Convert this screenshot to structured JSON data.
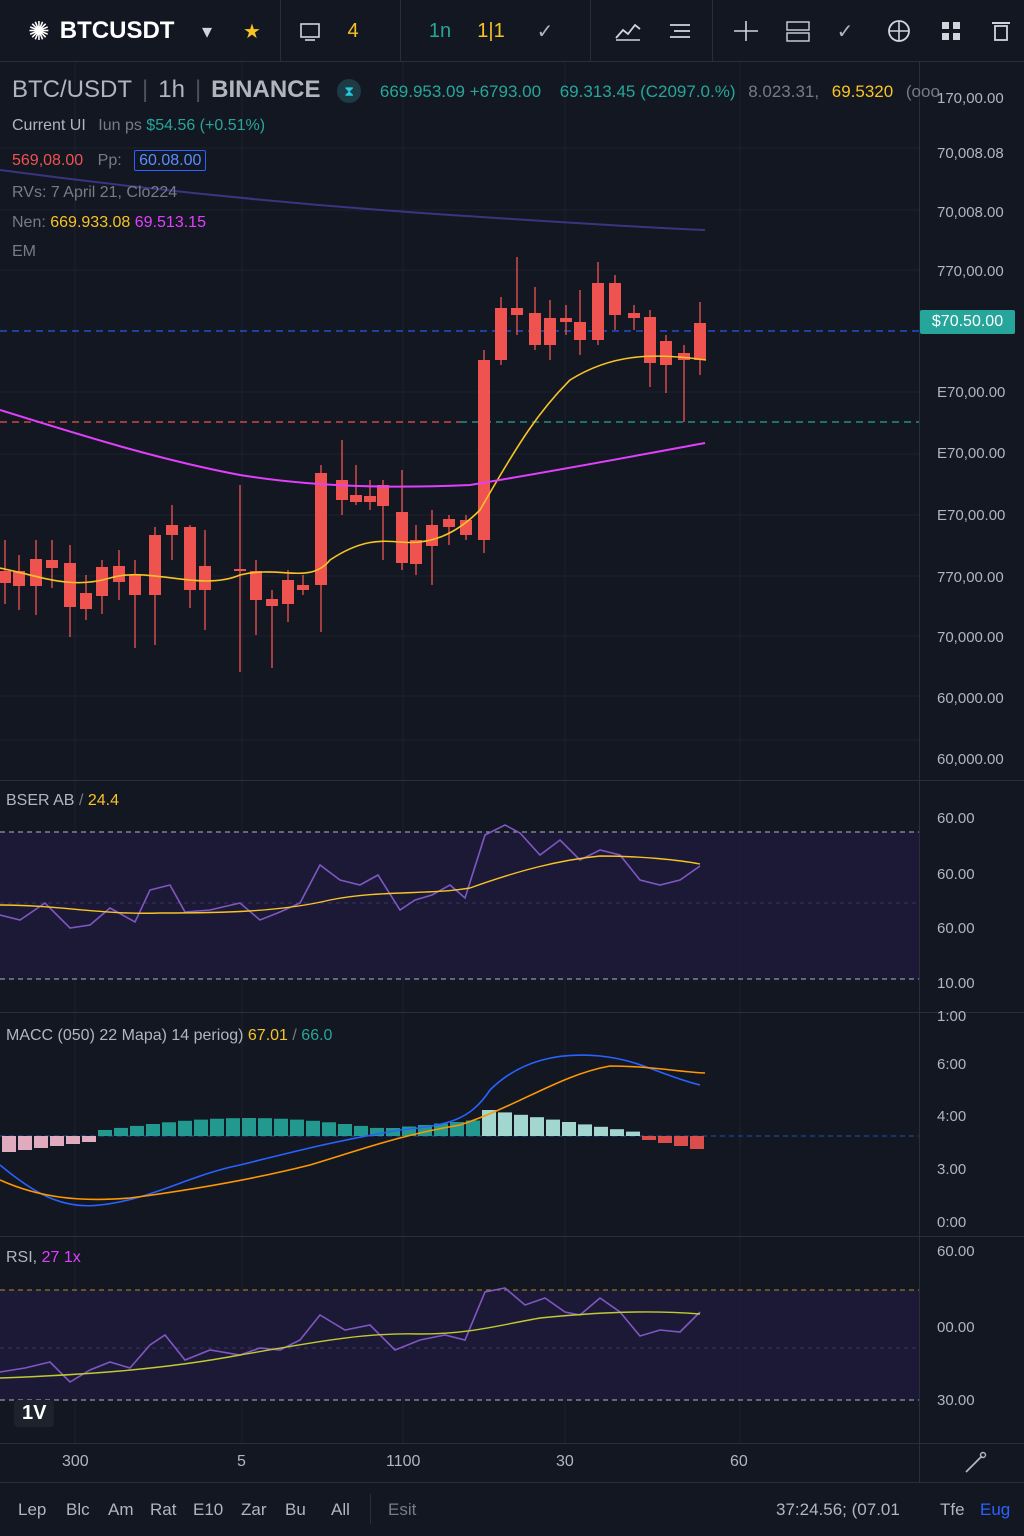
{
  "toolbar": {
    "symbol": "BTCUSDT",
    "logo_icon": "sun-logo-icon",
    "dropdown_icon": "▾",
    "star_icon": "★",
    "count": "4",
    "interval": "1n",
    "compare_icon": "1|1",
    "check_icon": "✓"
  },
  "legend": {
    "pair": "BTC/USDT",
    "interval": "1h",
    "exchange": "BINANCE",
    "ohlc_a": "669.953.09 +6793.00",
    "ohlc_b": "69.313.45 (C2097.0.%)",
    "ohlc_c": "8.023.31,",
    "ohlc_d": "69.5320",
    "ohlc_e": "(ooo",
    "current_label": "Current UI",
    "current_sub": "Iun ps",
    "current_value": "$54.56 (+0.51%)",
    "line1_red": "569,08.00",
    "line1_label": "Pp:",
    "line1_box": "60.08.00",
    "line2": "RVs: 7 April 21, Clo224",
    "line3_label": "Nen:",
    "line3_yellow": "669.933.08",
    "line3_magenta": "69.513.15",
    "line4": "EM"
  },
  "price_axis": {
    "labels": [
      "170,00.00",
      "70,008.08",
      "70,008.00",
      "770,00.00",
      "E70,00.00",
      "E70,00.00",
      "E70,00.00",
      "770,00.00",
      "70,000.00",
      "60,000.00",
      "60,000.00"
    ],
    "current": "$70.50.00"
  },
  "pane2": {
    "label": "BSER AB",
    "value": "24.4",
    "axis": [
      "60.00",
      "60.00",
      "60.00",
      "10.00"
    ]
  },
  "pane3": {
    "label": "MACC (050) 22 Mapa) 14 periog)",
    "value1": "67.01",
    "value2": "66.0",
    "axis": [
      "1:00",
      "6:00",
      "4:00",
      "3.00",
      "0:00"
    ]
  },
  "pane4": {
    "label": "RSI,",
    "value": "27 1x",
    "axis": [
      "60.00",
      "00.00",
      "30.00"
    ]
  },
  "time_axis": [
    "300",
    "5",
    "1100",
    "30",
    "60"
  ],
  "tv_logo": "1V",
  "bottom": {
    "ranges": [
      "Lep",
      "Blc",
      "Am",
      "Rat",
      "E10",
      "Zar",
      "Bu",
      "All"
    ],
    "edit": "Esit",
    "clock": "37:24.56; (07.01",
    "scale1": "Tfe",
    "scale2": "Eug"
  },
  "colors": {
    "background": "#131722",
    "up": "#26a69a",
    "down": "#ef5350",
    "ma_yellow": "#f7c325",
    "ma_magenta": "#e040fb",
    "osc_purple": "#7e57c2",
    "macd_blue": "#2962ff"
  }
}
